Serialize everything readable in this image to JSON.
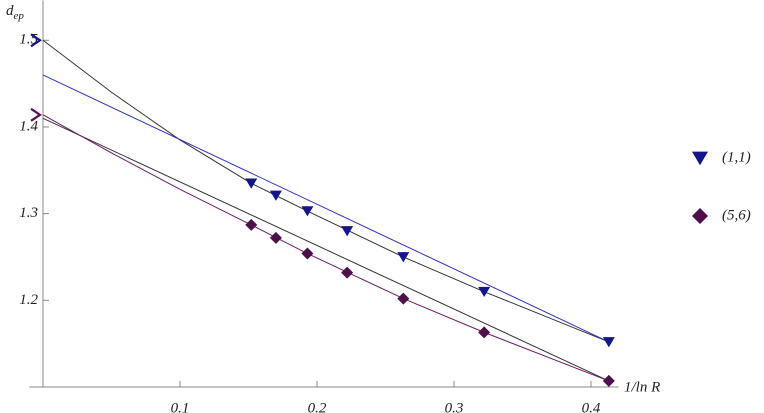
{
  "chart_data": {
    "type": "scatter",
    "xlabel": "1/ln R",
    "ylabel": "d",
    "ylabel_sub": "ep",
    "xlim": [
      -0.01,
      0.42
    ],
    "ylim": [
      1.1,
      1.546
    ],
    "xticks": [
      0.1,
      0.2,
      0.3,
      0.4
    ],
    "yticks": [
      1.2,
      1.3,
      1.4,
      1.5
    ],
    "series": [
      {
        "name": "(1,1)",
        "color": "#14148f",
        "marker": "triangle-down",
        "x": [
          0.152,
          0.17,
          0.193,
          0.222,
          0.263,
          0.322,
          0.413
        ],
        "values": [
          1.335,
          1.321,
          1.303,
          1.28,
          1.25,
          1.21,
          1.152
        ]
      },
      {
        "name": "(5,6)",
        "color": "#4e0f4a",
        "marker": "diamond",
        "x": [
          0.152,
          0.17,
          0.193,
          0.222,
          0.263,
          0.322,
          0.413
        ],
        "values": [
          1.287,
          1.272,
          1.254,
          1.232,
          1.202,
          1.163,
          1.107
        ]
      }
    ],
    "fits": [
      {
        "color": "#333333",
        "x": [
          0,
          0.05,
          0.1,
          0.152,
          0.193,
          0.263,
          0.322,
          0.413
        ],
        "values": [
          1.5,
          1.44,
          1.385,
          1.335,
          1.303,
          1.25,
          1.21,
          1.152
        ]
      },
      {
        "color": "#3030c8",
        "x": [
          0,
          0.413
        ],
        "values": [
          1.46,
          1.152
        ]
      },
      {
        "color": "#333333",
        "x": [
          0,
          0.413
        ],
        "values": [
          1.41,
          1.107
        ]
      },
      {
        "color": "#6a1e64",
        "x": [
          0,
          0.05,
          0.1,
          0.152,
          0.193,
          0.263,
          0.322,
          0.413
        ],
        "values": [
          1.414,
          1.37,
          1.328,
          1.287,
          1.254,
          1.202,
          1.163,
          1.107
        ]
      }
    ],
    "axis_marks": [
      {
        "value": 1.5,
        "color": "#14148f"
      },
      {
        "value": 1.414,
        "color": "#5a1050"
      }
    ]
  }
}
